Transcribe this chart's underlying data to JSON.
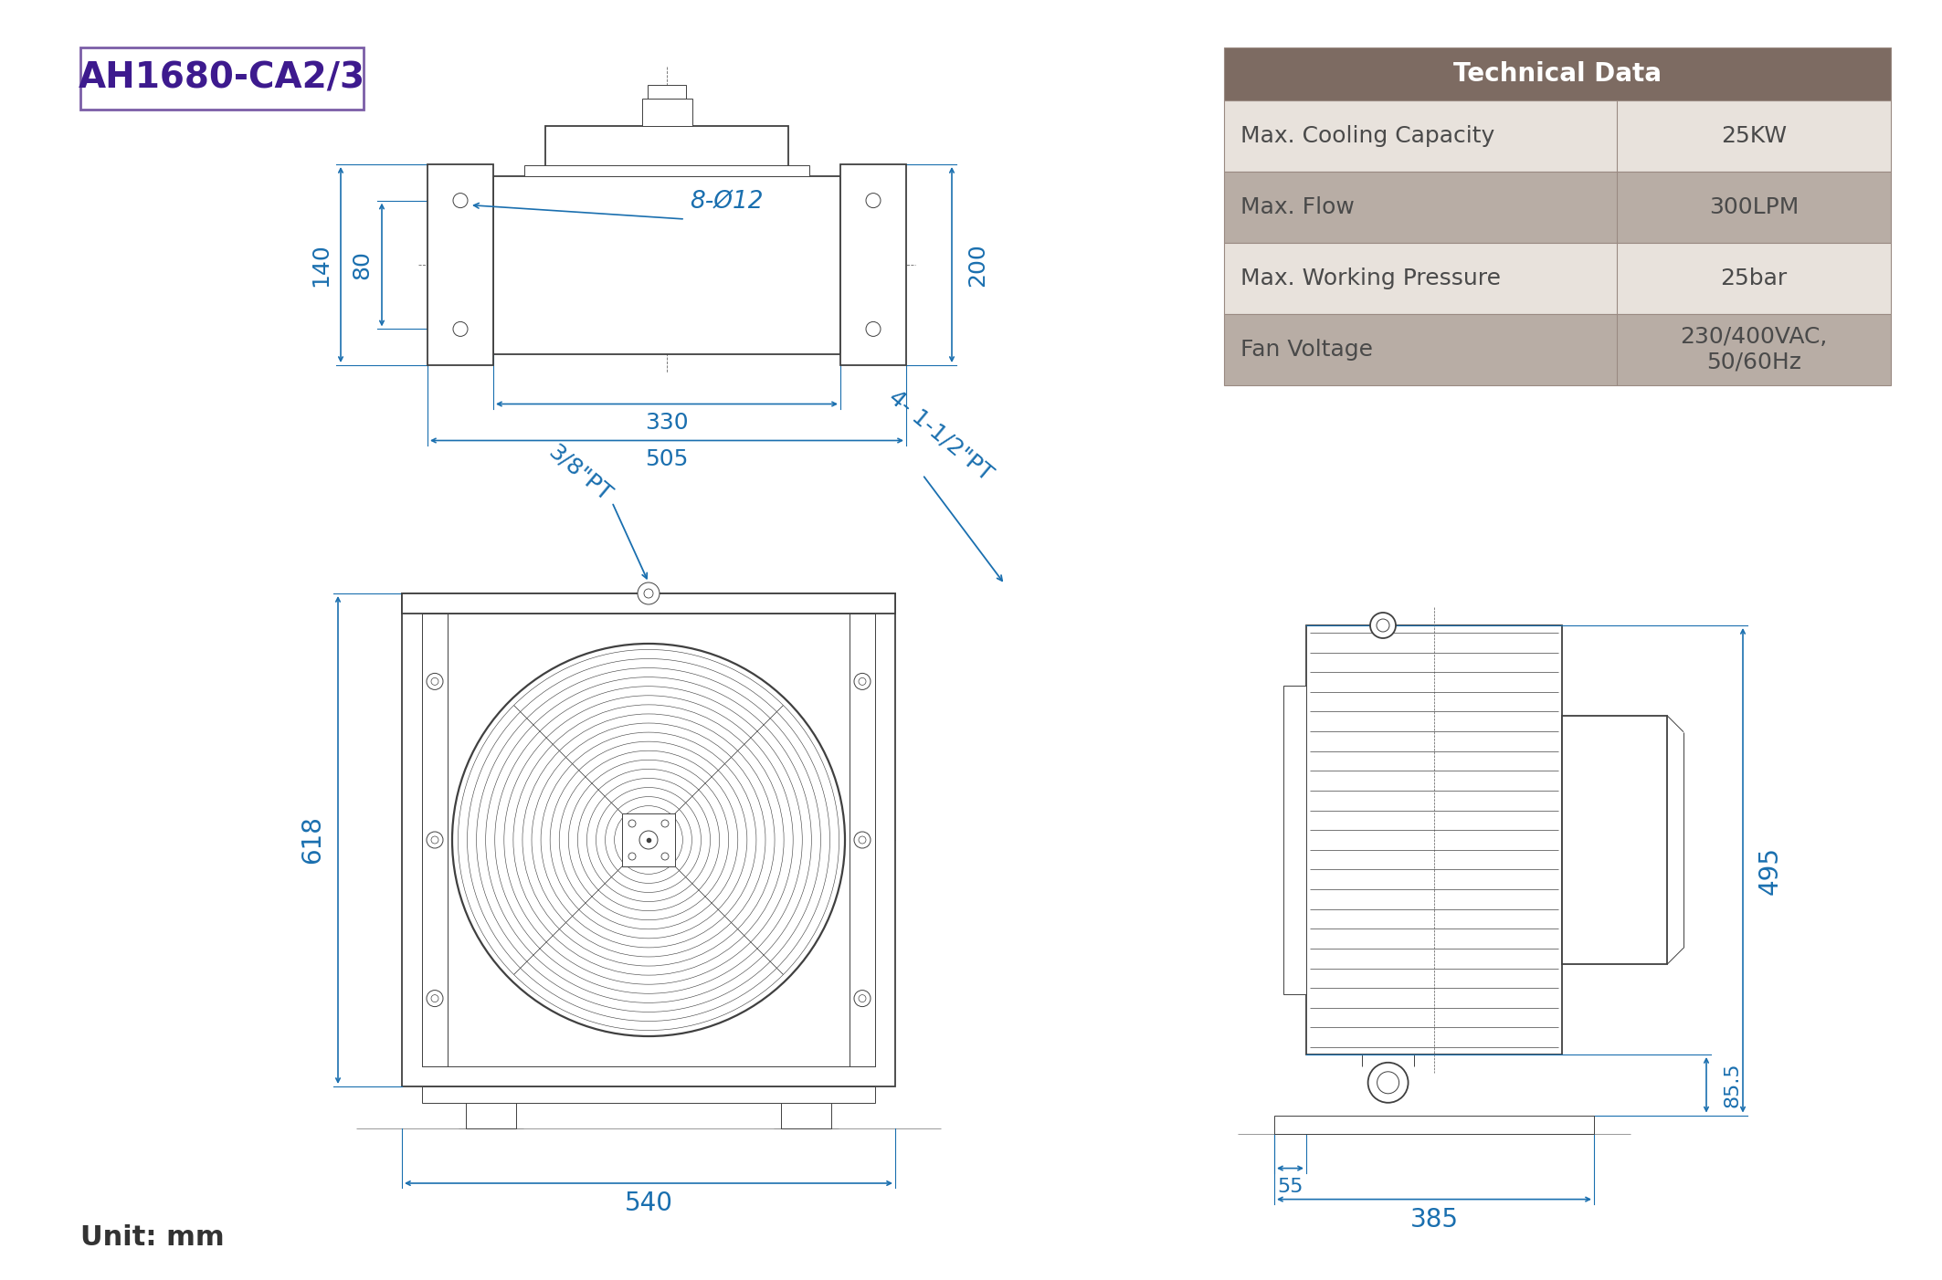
{
  "title": "AH1680-CA2/3",
  "title_color": "#3D1A8E",
  "title_box_color": "#7B5EA7",
  "bg_color": "#FFFFFF",
  "dim_color": "#1a6faf",
  "line_color": "#404040",
  "table_header_bg": "#7D6B62",
  "table_row_bg_light": "#E8E2DC",
  "table_row_bg_dark": "#B8ADA5",
  "table_header_text": "#FFFFFF",
  "table_text": "#4a4a4a",
  "unit_text": "Unit: mm",
  "tech_data": {
    "header": "Technical Data",
    "rows": [
      [
        "Max. Cooling Capacity",
        "25KW"
      ],
      [
        "Max. Flow",
        "300LPM"
      ],
      [
        "Max. Working Pressure",
        "25bar"
      ],
      [
        "Fan Voltage",
        "230/400VAC,\n50/60Hz"
      ]
    ]
  },
  "top_dims": {
    "dim_80": "80",
    "dim_140": "140",
    "dim_200": "200",
    "dim_330": "330",
    "dim_505": "505",
    "dim_holes": "8-Ø12"
  },
  "front_dims": {
    "dim_618": "618",
    "dim_540": "540",
    "label_38pt": "3/8\"PT",
    "label_112pt": "4- 1-1/2\"PT"
  },
  "side_dims": {
    "dim_495": "495",
    "dim_85_5": "85.5",
    "dim_55": "55",
    "dim_385": "385"
  }
}
